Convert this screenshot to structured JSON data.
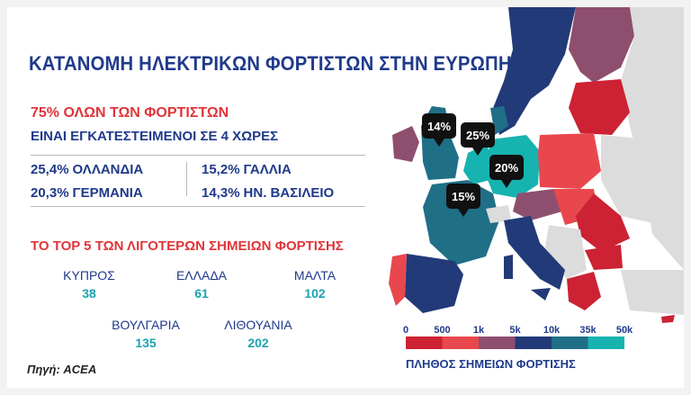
{
  "title": "ΚΑΤΑΝΟΜΗ ΗΛΕΚΤΡΙΚΩΝ ΦΟΡΤΙΣΤΩΝ ΣΤΗΝ ΕΥΡΩΠΗ",
  "headline_red": "75% ΟΛΩΝ ΤΩΝ ΦΟΡΤΙΣΤΩΝ",
  "headline_blue": "ΕΙΝΑΙ ΕΓΚΑΤΕΣΤΕΙΜΕΝΟΙ ΣΕ 4 ΧΩΡΕΣ",
  "top5_title": "ΤΟ TOP 5 ΤΩΝ ΛΙΓΟΤΕΡΩΝ ΣΗΜΕΙΩΝ ΦΟΡΤΙΣΗΣ",
  "source": "Πηγή: ACEA",
  "legend_title": "ΠΛΗΘΟΣ ΣΗΜΕΙΩΝ ΦΟΡΤΙΣΗΣ",
  "colors": {
    "title_blue": "#1f3a8a",
    "red": "#e0353a",
    "teal": "#1aa3b2",
    "scale": [
      "#cc2233",
      "#e8474d",
      "#8e4f6f",
      "#223a78",
      "#1f6f87",
      "#17b3b0"
    ]
  },
  "chart_data": [
    {
      "type": "table",
      "title": "75% ΟΛΩΝ ΤΩΝ ΦΟΡΤΙΣΤΩΝ ΕΙΝΑΙ ΕΓΚΑΤΕΣΤΕΙΜΕΝΟΙ ΣΕ 4 ΧΩΡΕΣ",
      "unit": "%",
      "shares": [
        {
          "country": "ΟΛΛΑΝΔΙΑ",
          "value": 25.4,
          "label": "25,4%"
        },
        {
          "country": "ΓΕΡΜΑΝΙΑ",
          "value": 20.3,
          "label": "20,3%"
        },
        {
          "country": "ΓΑΛΛΙΑ",
          "value": 15.2,
          "label": "15,2%"
        },
        {
          "country": "ΗΝ. ΒΑΣΙΛΕΙΟ",
          "value": 14.3,
          "label": "14,3%"
        }
      ]
    },
    {
      "type": "table",
      "title": "ΤΟ TOP 5 ΤΩΝ ΛΙΓΟΤΕΡΩΝ ΣΗΜΕΙΩΝ ΦΟΡΤΙΣΗΣ",
      "least": [
        {
          "country": "ΚΥΠΡΟΣ",
          "value": 38
        },
        {
          "country": "ΕΛΛΑΔΑ",
          "value": 61
        },
        {
          "country": "ΜΑΛΤΑ",
          "value": 102
        },
        {
          "country": "ΒΟΥΛΓΑΡΙΑ",
          "value": 135
        },
        {
          "country": "ΛΙΘΟΥΑΝΙΑ",
          "value": 202
        }
      ]
    },
    {
      "type": "heatmap",
      "title": "",
      "legend_title": "ΠΛΗΘΟΣ ΣΗΜΕΙΩΝ ΦΟΡΤΙΣΗΣ",
      "legend_ticks": [
        "0",
        "500",
        "1k",
        "5k",
        "10k",
        "35k",
        "50k"
      ],
      "callouts": [
        "14%",
        "25%",
        "20%",
        "15%"
      ]
    }
  ]
}
